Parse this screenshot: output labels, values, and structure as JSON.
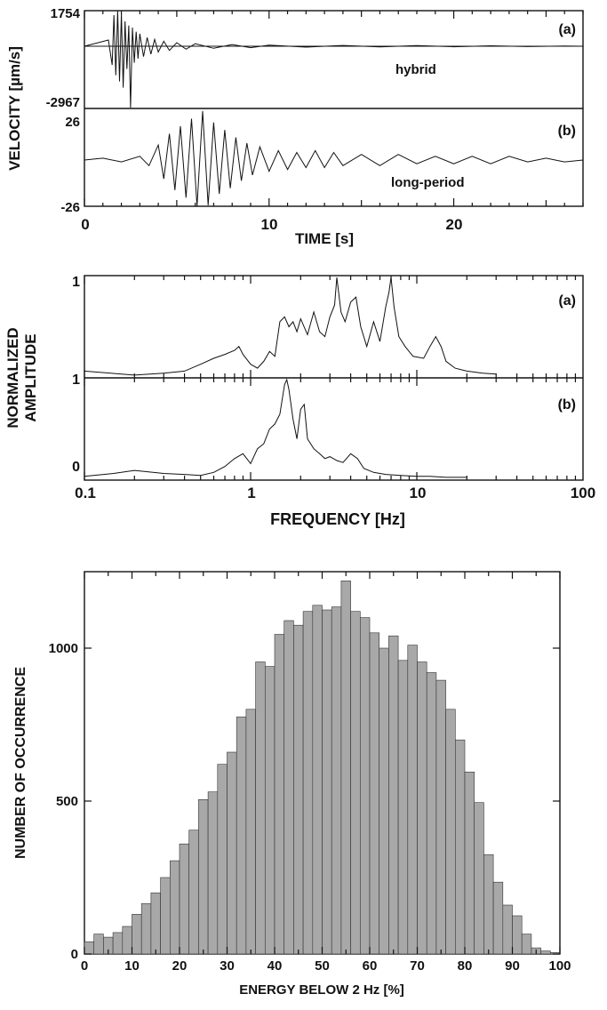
{
  "chart_data": [
    {
      "type": "line",
      "panel": "top",
      "xlabel": "TIME [s]",
      "ylabel": "VELOCITY [µm/s]",
      "xlim": [
        0,
        27
      ],
      "x_ticks": [
        "0",
        "10",
        "20"
      ],
      "x_tick_values": [
        0,
        10,
        20
      ],
      "series": [
        {
          "label": "(a)",
          "name": "hybrid",
          "y_tick_labels": [
            "1754",
            "-2967"
          ],
          "ylim": [
            -2967,
            1754
          ],
          "t": [
            0,
            1.3,
            1.5,
            1.6,
            1.7,
            1.8,
            1.9,
            2.0,
            2.1,
            2.2,
            2.3,
            2.4,
            2.5,
            2.6,
            2.7,
            2.8,
            2.9,
            3.0,
            3.2,
            3.4,
            3.6,
            3.8,
            4.0,
            4.3,
            4.6,
            5.0,
            5.5,
            6,
            7,
            8,
            9,
            10,
            12,
            14,
            16,
            18,
            20,
            22,
            24,
            26,
            27
          ],
          "v": [
            0,
            300,
            -900,
            1500,
            -1400,
            1750,
            -1700,
            1600,
            -2000,
            1200,
            -1100,
            1000,
            -2967,
            900,
            -800,
            700,
            -600,
            600,
            -500,
            420,
            -380,
            330,
            -280,
            240,
            -200,
            170,
            -140,
            120,
            -100,
            80,
            -70,
            55,
            -45,
            40,
            -35,
            30,
            -25,
            22,
            -18,
            15,
            0
          ]
        },
        {
          "label": "(b)",
          "name": "long-period",
          "y_tick_labels": [
            "26",
            "-26"
          ],
          "ylim": [
            -26,
            26
          ],
          "t": [
            0,
            1,
            2,
            3,
            3.5,
            4,
            4.3,
            4.6,
            4.9,
            5.2,
            5.5,
            5.8,
            6.1,
            6.4,
            6.7,
            7.0,
            7.3,
            7.6,
            7.9,
            8.2,
            8.5,
            8.8,
            9.1,
            9.5,
            10,
            10.5,
            11,
            11.5,
            12,
            12.5,
            13,
            13.5,
            14,
            15,
            16,
            17,
            18,
            19,
            20,
            21,
            22,
            23,
            24,
            25,
            26,
            27
          ],
          "v": [
            0,
            1,
            -1,
            2,
            -3,
            8,
            -10,
            14,
            -16,
            18,
            -20,
            22,
            -25,
            26,
            -24,
            20,
            -18,
            16,
            -15,
            12,
            -11,
            9,
            -8,
            7,
            -6,
            5,
            -5,
            4,
            -4,
            5,
            -4,
            4,
            -3,
            3,
            -3,
            3,
            -2,
            2,
            -2,
            2,
            -2,
            2,
            -1,
            1,
            -1,
            0
          ]
        }
      ]
    },
    {
      "type": "line",
      "panel": "middle",
      "xlabel": "FREQUENCY [Hz]",
      "ylabel": "NORMALIZED AMPLITUDE",
      "x_scale": "log",
      "xlim": [
        0.1,
        100
      ],
      "x_ticks": [
        "0.1",
        "1",
        "10",
        "100"
      ],
      "x_tick_values": [
        0.1,
        1,
        10,
        100
      ],
      "series": [
        {
          "label": "(a)",
          "y_tick_labels": [
            "1",
            "1"
          ],
          "ylim": [
            0,
            1
          ],
          "f": [
            0.1,
            0.2,
            0.3,
            0.4,
            0.5,
            0.6,
            0.7,
            0.8,
            0.85,
            0.9,
            1.0,
            1.1,
            1.2,
            1.3,
            1.4,
            1.5,
            1.6,
            1.7,
            1.8,
            1.9,
            2.0,
            2.2,
            2.4,
            2.6,
            2.8,
            3.0,
            3.2,
            3.3,
            3.5,
            3.7,
            4.0,
            4.3,
            4.6,
            5.0,
            5.5,
            6.0,
            6.5,
            6.8,
            7.0,
            7.3,
            7.8,
            8.5,
            9.5,
            11,
            12,
            13,
            14,
            15,
            17,
            20,
            25,
            30
          ],
          "a": [
            0.05,
            0.01,
            0.03,
            0.05,
            0.12,
            0.18,
            0.22,
            0.26,
            0.3,
            0.22,
            0.12,
            0.08,
            0.15,
            0.25,
            0.2,
            0.55,
            0.6,
            0.5,
            0.55,
            0.45,
            0.58,
            0.42,
            0.65,
            0.45,
            0.4,
            0.6,
            0.72,
            1.0,
            0.65,
            0.55,
            0.75,
            0.8,
            0.5,
            0.3,
            0.55,
            0.35,
            0.7,
            0.85,
            1.0,
            0.7,
            0.4,
            0.3,
            0.2,
            0.18,
            0.3,
            0.4,
            0.3,
            0.15,
            0.08,
            0.05,
            0.03,
            0.02
          ]
        },
        {
          "label": "(b)",
          "y_tick_labels": [
            "1",
            "0"
          ],
          "ylim": [
            0,
            1
          ],
          "f": [
            0.1,
            0.15,
            0.2,
            0.3,
            0.4,
            0.5,
            0.6,
            0.7,
            0.8,
            0.9,
            1.0,
            1.1,
            1.2,
            1.3,
            1.4,
            1.5,
            1.6,
            1.65,
            1.7,
            1.8,
            1.9,
            2.0,
            2.1,
            2.2,
            2.4,
            2.6,
            2.8,
            3.0,
            3.3,
            3.6,
            4.0,
            4.4,
            4.8,
            5.5,
            6.5,
            8,
            10,
            12,
            15,
            20
          ],
          "a": [
            0.02,
            0.05,
            0.08,
            0.05,
            0.04,
            0.03,
            0.06,
            0.12,
            0.2,
            0.25,
            0.15,
            0.3,
            0.35,
            0.5,
            0.55,
            0.65,
            0.95,
            1.0,
            0.9,
            0.6,
            0.4,
            0.7,
            0.75,
            0.4,
            0.3,
            0.25,
            0.2,
            0.22,
            0.18,
            0.16,
            0.25,
            0.2,
            0.1,
            0.06,
            0.04,
            0.03,
            0.02,
            0.02,
            0.01,
            0.01
          ]
        }
      ]
    },
    {
      "type": "bar",
      "panel": "bottom",
      "xlabel": "ENERGY BELOW 2 Hz  [%]",
      "ylabel": "NUMBER OF OCCURRENCE",
      "xlim": [
        0,
        100
      ],
      "ylim": [
        0,
        1250
      ],
      "x_ticks": [
        "0",
        "10",
        "20",
        "30",
        "40",
        "50",
        "60",
        "70",
        "80",
        "90",
        "100"
      ],
      "y_ticks": [
        "0",
        "500",
        "1000"
      ],
      "y_tick_values": [
        0,
        500,
        1000
      ],
      "bin_width": 2,
      "bin_starts": [
        0,
        2,
        4,
        6,
        8,
        10,
        12,
        14,
        16,
        18,
        20,
        22,
        24,
        26,
        28,
        30,
        32,
        34,
        36,
        38,
        40,
        42,
        44,
        46,
        48,
        50,
        52,
        54,
        56,
        58,
        60,
        62,
        64,
        66,
        68,
        70,
        72,
        74,
        76,
        78,
        80,
        82,
        84,
        86,
        88,
        90,
        92,
        94,
        96,
        98
      ],
      "values": [
        40,
        65,
        55,
        70,
        90,
        130,
        165,
        200,
        250,
        305,
        360,
        405,
        505,
        530,
        620,
        660,
        775,
        800,
        955,
        940,
        1045,
        1090,
        1075,
        1120,
        1140,
        1125,
        1135,
        1220,
        1120,
        1100,
        1050,
        1000,
        1040,
        960,
        1010,
        955,
        920,
        895,
        800,
        700,
        595,
        495,
        325,
        235,
        160,
        125,
        65,
        20,
        10,
        5
      ]
    }
  ]
}
